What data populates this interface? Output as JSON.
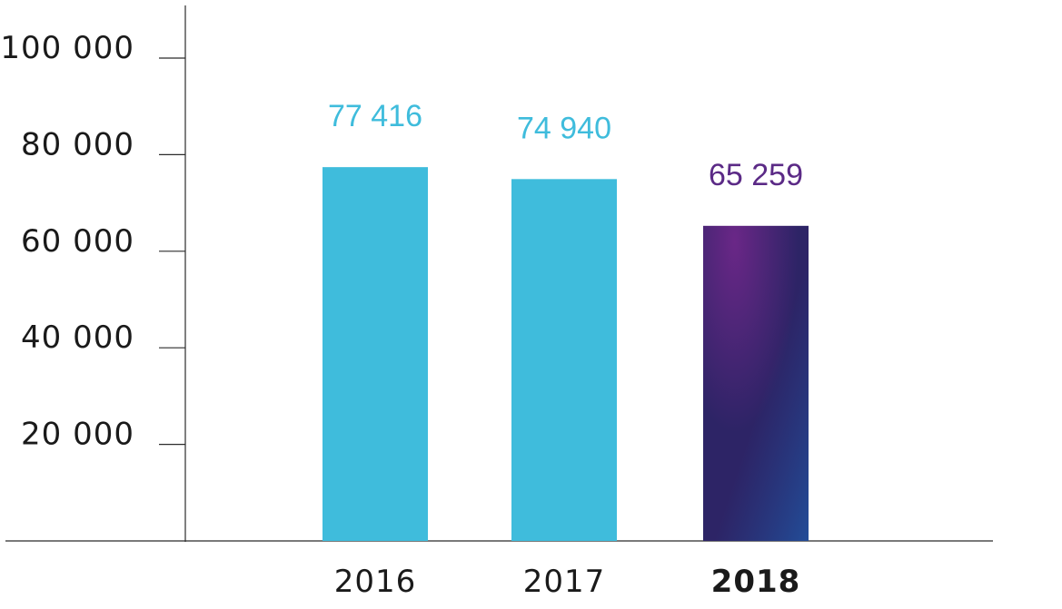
{
  "chart_data": {
    "type": "bar",
    "categories": [
      "2016",
      "2017",
      "2018"
    ],
    "values": [
      77416,
      74940,
      65259
    ],
    "data_labels": [
      "77 416",
      "74 940",
      "65 259"
    ],
    "title": "",
    "xlabel": "",
    "ylabel": "",
    "ylim": [
      0,
      110000
    ],
    "yticks": [
      20000,
      40000,
      60000,
      80000,
      100000
    ],
    "ytick_labels": [
      "20 000",
      "40 000",
      "60 000",
      "80 000",
      "100 000"
    ],
    "highlight_category": "2018",
    "grid": false,
    "legend": "none",
    "colors": {
      "bar": "#3fbcdc",
      "label": "#3fbcdc",
      "highlight_label": "#5b2a86",
      "highlight_gradient": [
        "#6a2787",
        "#2d2466",
        "#1f4f9c"
      ],
      "axis": "#2b2b2b",
      "text": "#1a1a1a"
    }
  }
}
